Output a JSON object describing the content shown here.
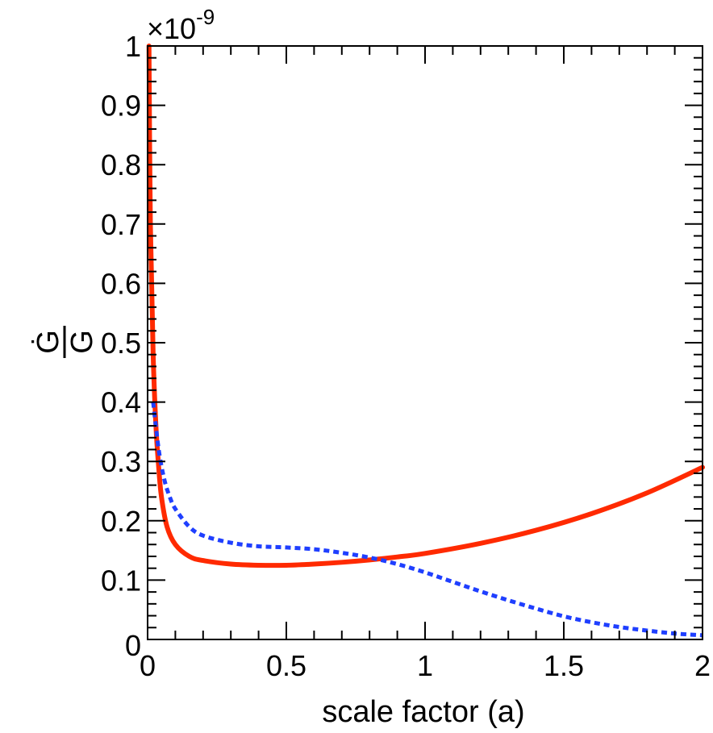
{
  "chart_data": {
    "type": "line",
    "xlabel": "scale factor (a)",
    "ylabel": "Ġ/G",
    "ylabel_numerator": "Ġ",
    "ylabel_denominator": "G",
    "y_multiplier": "×10",
    "y_multiplier_exponent": "-9",
    "xlim": [
      0,
      2
    ],
    "ylim": [
      0,
      1
    ],
    "x_ticks": [
      "0",
      "0.5",
      "1",
      "1.5",
      "2"
    ],
    "y_ticks": [
      "0",
      "0.1",
      "0.2",
      "0.3",
      "0.4",
      "0.5",
      "0.6",
      "0.7",
      "0.8",
      "0.9",
      "1"
    ],
    "grid": false,
    "series": [
      {
        "style": "solid",
        "color": "#ff2a00",
        "x": [
          0.005,
          0.01,
          0.02,
          0.03,
          0.04,
          0.05,
          0.07,
          0.1,
          0.15,
          0.2,
          0.3,
          0.4,
          0.5,
          0.6,
          0.7,
          0.8,
          0.9,
          1.0,
          1.2,
          1.4,
          1.6,
          1.8,
          2.0
        ],
        "values": [
          1.0,
          0.7,
          0.48,
          0.36,
          0.29,
          0.24,
          0.19,
          0.16,
          0.14,
          0.133,
          0.127,
          0.125,
          0.125,
          0.127,
          0.13,
          0.134,
          0.139,
          0.145,
          0.162,
          0.184,
          0.212,
          0.247,
          0.29
        ]
      },
      {
        "style": "dotted",
        "color": "#1f3fff",
        "x": [
          0.02,
          0.04,
          0.06,
          0.08,
          0.1,
          0.15,
          0.2,
          0.3,
          0.4,
          0.5,
          0.6,
          0.7,
          0.8,
          0.9,
          1.0,
          1.1,
          1.2,
          1.3,
          1.4,
          1.5,
          1.6,
          1.7,
          1.8,
          1.9,
          2.0
        ],
        "values": [
          0.4,
          0.32,
          0.27,
          0.24,
          0.22,
          0.19,
          0.175,
          0.163,
          0.157,
          0.155,
          0.152,
          0.146,
          0.138,
          0.127,
          0.113,
          0.097,
          0.081,
          0.066,
          0.052,
          0.039,
          0.029,
          0.021,
          0.015,
          0.01,
          0.007
        ]
      }
    ]
  }
}
